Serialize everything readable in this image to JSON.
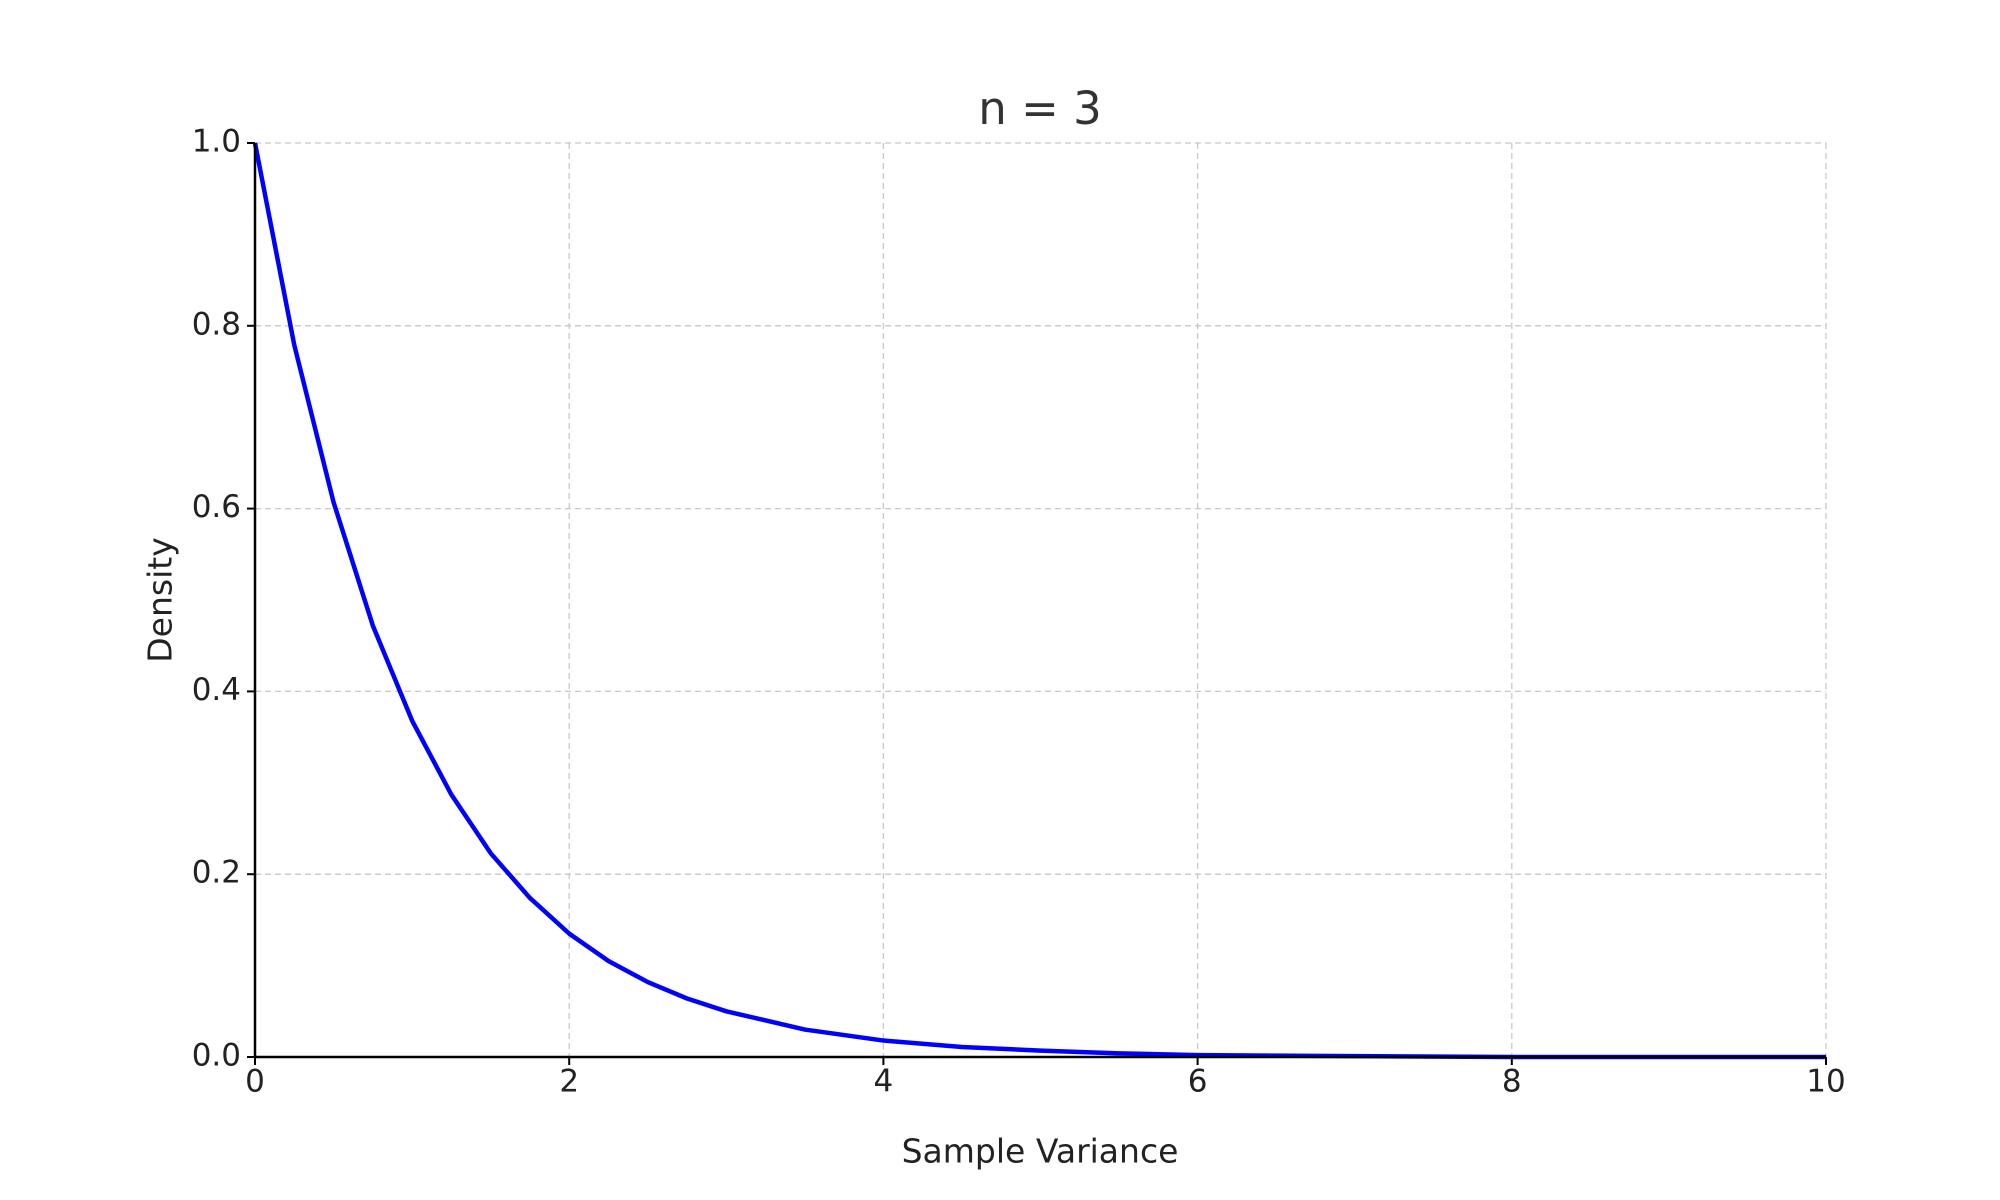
{
  "chart_data": {
    "type": "line",
    "title": "n = 3",
    "x_label": "Sample Variance",
    "y_label": "Density",
    "x": [
      0,
      0.25,
      0.5,
      0.75,
      1,
      1.25,
      1.5,
      1.75,
      2,
      2.25,
      2.5,
      2.75,
      3,
      3.5,
      4,
      4.5,
      5,
      5.5,
      6,
      7,
      8,
      9,
      10
    ],
    "series": [
      {
        "color": "#0000ff",
        "values": [
          1,
          0.779,
          0.607,
          0.472,
          0.368,
          0.287,
          0.223,
          0.174,
          0.135,
          0.105,
          0.082,
          0.064,
          0.05,
          0.03,
          0.018,
          0.011,
          0.007,
          0.004,
          0.002,
          0.001,
          0,
          0,
          0
        ]
      }
    ],
    "xlim": [
      0,
      10
    ],
    "ylim": [
      0,
      1
    ],
    "xticks": [
      0,
      2,
      4,
      6,
      8,
      10
    ],
    "yticks": [
      {
        "value": 0,
        "label": "0.0"
      },
      0.2,
      0.4,
      0.6,
      0.8,
      {
        "value": 1,
        "label": "1.0"
      }
    ],
    "grid": true
  }
}
